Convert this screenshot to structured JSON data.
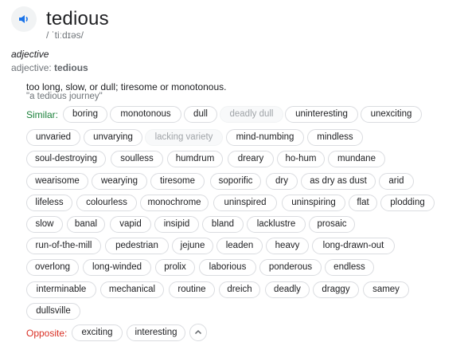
{
  "entry": {
    "word": "tedious",
    "phonetic": "/ ˈtiːdɪəs/",
    "pos": "adjective",
    "pos_label": "adjective:",
    "pos_word": "tedious",
    "definition": "too long, slow, or dull; tiresome or monotonous.",
    "example": "\"a tedious journey\""
  },
  "similar_label": "Similar:",
  "opposite_label": "Opposite:",
  "synonyms": [
    "boring",
    "monotonous",
    "dull",
    "deadly dull",
    "uninteresting",
    "unexciting",
    "unvaried",
    "unvarying",
    "lacking variety",
    "mind-numbing",
    "mindless",
    "soul-destroying",
    "soulless",
    "humdrum",
    "dreary",
    "ho-hum",
    "mundane",
    "wearisome",
    "wearying",
    "tiresome",
    "soporific",
    "dry",
    "as dry as dust",
    "arid",
    "lifeless",
    "colourless",
    "monochrome",
    "uninspired",
    "uninspiring",
    "flat",
    "plodding",
    "slow",
    "banal",
    "vapid",
    "insipid",
    "bland",
    "lacklustre",
    "prosaic",
    "run-of-the-mill",
    "pedestrian",
    "jejune",
    "leaden",
    "heavy",
    "long-drawn-out",
    "overlong",
    "long-winded",
    "prolix",
    "laborious",
    "ponderous",
    "endless",
    "interminable",
    "mechanical",
    "routine",
    "dreich",
    "deadly",
    "draggy",
    "samey",
    "dullsville"
  ],
  "antonyms": [
    "exciting",
    "interesting"
  ],
  "icons": {
    "speaker": "speaker-icon",
    "expand": "chevron-up-icon"
  },
  "colors": {
    "similar": "#188038",
    "opposite": "#d93025",
    "accent": "#1a73e8"
  }
}
